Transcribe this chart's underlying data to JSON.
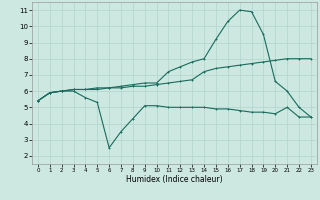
{
  "xlabel": "Humidex (Indice chaleur)",
  "x_ticks": [
    0,
    1,
    2,
    3,
    4,
    5,
    6,
    7,
    8,
    9,
    10,
    11,
    12,
    13,
    14,
    15,
    16,
    17,
    18,
    19,
    20,
    21,
    22,
    23
  ],
  "y_ticks": [
    2,
    3,
    4,
    5,
    6,
    7,
    8,
    9,
    10,
    11
  ],
  "xlim": [
    -0.5,
    23.5
  ],
  "ylim": [
    1.5,
    11.5
  ],
  "bg_color": "#cce8e0",
  "line_color": "#1a6b5e",
  "grid_color": "#b0d4cc",
  "line1_x": [
    0,
    1,
    2,
    3,
    4,
    5,
    6,
    7,
    8,
    9,
    10,
    11,
    12,
    13,
    14,
    15,
    16,
    17,
    18,
    19,
    20,
    21,
    22,
    23
  ],
  "line1_y": [
    5.4,
    5.9,
    6.0,
    6.0,
    5.6,
    5.3,
    2.5,
    3.5,
    4.3,
    5.1,
    5.1,
    5.0,
    5.0,
    5.0,
    5.0,
    4.9,
    4.9,
    4.8,
    4.7,
    4.7,
    4.6,
    5.0,
    4.4,
    4.4
  ],
  "line2_x": [
    0,
    1,
    2,
    3,
    4,
    5,
    6,
    7,
    8,
    9,
    10,
    11,
    12,
    13,
    14,
    15,
    16,
    17,
    18,
    19,
    20,
    21,
    22,
    23
  ],
  "line2_y": [
    5.4,
    5.9,
    6.0,
    6.1,
    6.1,
    6.1,
    6.2,
    6.2,
    6.3,
    6.3,
    6.4,
    6.5,
    6.6,
    6.7,
    7.2,
    7.4,
    7.5,
    7.6,
    7.7,
    7.8,
    7.9,
    8.0,
    8.0,
    8.0
  ],
  "line3_x": [
    0,
    1,
    2,
    3,
    4,
    5,
    6,
    7,
    8,
    9,
    10,
    11,
    12,
    13,
    14,
    15,
    16,
    17,
    18,
    19,
    20,
    21,
    22,
    23
  ],
  "line3_y": [
    5.4,
    5.9,
    6.0,
    6.1,
    6.1,
    6.2,
    6.2,
    6.3,
    6.4,
    6.5,
    6.5,
    7.2,
    7.5,
    7.8,
    8.0,
    9.2,
    10.3,
    11.0,
    10.9,
    9.5,
    6.6,
    6.0,
    5.0,
    4.4
  ]
}
